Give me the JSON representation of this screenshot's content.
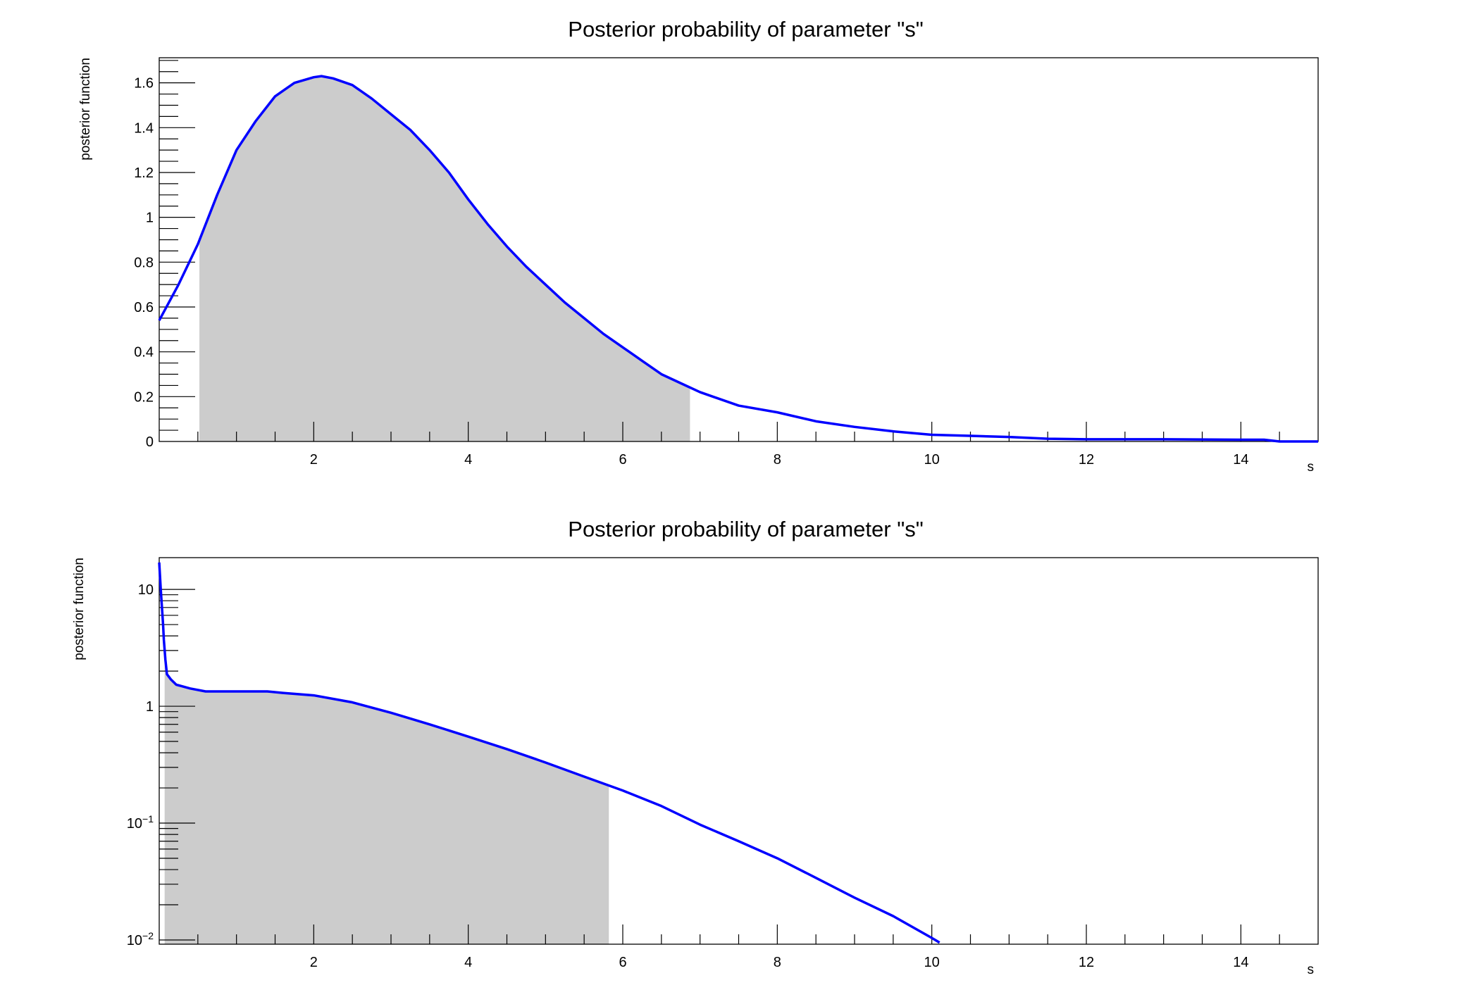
{
  "chart_data": [
    {
      "type": "area",
      "title": "Posterior probability of parameter \"s\"",
      "xlabel": "s",
      "ylabel": "posterior function",
      "xlim": [
        0,
        15
      ],
      "ylim": [
        0,
        1.712
      ],
      "yscale": "linear",
      "xticks": [
        "2",
        "4",
        "6",
        "8",
        "10",
        "12",
        "14"
      ],
      "yticks": [
        "0",
        "0.2",
        "0.4",
        "0.6",
        "0.8",
        "1",
        "1.2",
        "1.4",
        "1.6"
      ],
      "line_color": "#0000ff",
      "shade_color": "#cccccc",
      "shaded_interval": [
        0.52,
        6.87
      ],
      "grid": false,
      "x": [
        0,
        0.25,
        0.5,
        0.75,
        1.0,
        1.25,
        1.5,
        1.75,
        2.0,
        2.1,
        2.25,
        2.5,
        2.75,
        3.0,
        3.25,
        3.5,
        3.75,
        4.0,
        4.25,
        4.5,
        4.75,
        5.0,
        5.25,
        5.5,
        5.75,
        6.0,
        6.25,
        6.5,
        6.75,
        7.0,
        7.5,
        8.0,
        8.5,
        9.0,
        9.5,
        10.0,
        10.5,
        11.0,
        11.5,
        12.0,
        13.0,
        14.0,
        14.3,
        14.5,
        15.0
      ],
      "y": [
        0.54,
        0.7,
        0.88,
        1.1,
        1.3,
        1.43,
        1.54,
        1.6,
        1.625,
        1.63,
        1.62,
        1.59,
        1.53,
        1.46,
        1.39,
        1.3,
        1.2,
        1.08,
        0.97,
        0.87,
        0.78,
        0.7,
        0.62,
        0.55,
        0.48,
        0.42,
        0.36,
        0.3,
        0.26,
        0.22,
        0.16,
        0.13,
        0.09,
        0.065,
        0.045,
        0.03,
        0.025,
        0.02,
        0.012,
        0.01,
        0.01,
        0.008,
        0.008,
        0,
        0
      ]
    },
    {
      "type": "area",
      "title": "Posterior probability of parameter \"s\"",
      "xlabel": "s",
      "ylabel": "posterior function",
      "xlim": [
        0,
        15
      ],
      "ylim": [
        0.0092,
        18.7
      ],
      "yscale": "log",
      "xticks": [
        "2",
        "4",
        "6",
        "8",
        "10",
        "12",
        "14"
      ],
      "yticks": [
        {
          "base": "10",
          "exp": "-2",
          "value": 0.01
        },
        {
          "base": "10",
          "exp": "-1",
          "value": 0.1
        },
        {
          "base": "1",
          "exp": "",
          "value": 1
        },
        {
          "base": "10",
          "exp": "",
          "value": 10
        }
      ],
      "line_color": "#0000ff",
      "shade_color": "#cccccc",
      "shaded_interval": [
        0.07,
        5.82
      ],
      "grid": false,
      "x": [
        0,
        0.02,
        0.05,
        0.06,
        0.08,
        0.1,
        0.15,
        0.22,
        0.4,
        0.6,
        1.0,
        1.4,
        1.6,
        2.0,
        2.5,
        3.0,
        3.5,
        4.0,
        4.5,
        5.0,
        5.5,
        6.0,
        6.5,
        7.0,
        7.5,
        8.0,
        8.5,
        9.0,
        9.5,
        10.0,
        10.1
      ],
      "y": [
        17,
        10,
        5,
        3.7,
        2.5,
        1.88,
        1.7,
        1.53,
        1.42,
        1.34,
        1.34,
        1.34,
        1.3,
        1.24,
        1.08,
        0.88,
        0.7,
        0.55,
        0.43,
        0.33,
        0.25,
        0.19,
        0.14,
        0.097,
        0.07,
        0.05,
        0.034,
        0.023,
        0.016,
        0.0104,
        0.0095
      ]
    }
  ]
}
